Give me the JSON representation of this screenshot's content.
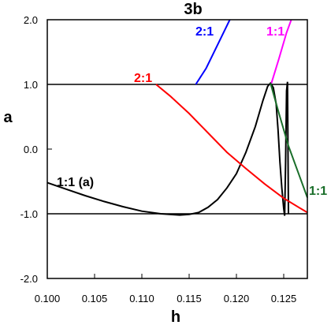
{
  "chart_data": {
    "type": "line",
    "title": "3b",
    "xlabel": "h",
    "ylabel": "a",
    "xlim": [
      0.1,
      0.1275
    ],
    "ylim": [
      -2.0,
      2.0
    ],
    "x_ticks": [
      "0.100",
      "0.105",
      "0.110",
      "0.115",
      "0.120",
      "0.125"
    ],
    "y_ticks": [
      "2.0",
      "1.0",
      "a",
      "0.0",
      "-1.0",
      "-2.0"
    ],
    "y_ticks_numeric": [
      "2.0",
      "1.0",
      "0.0",
      "-1.0",
      "-2.0"
    ],
    "grid": false,
    "reference_lines": [
      1.0,
      -1.0
    ],
    "series": [
      {
        "name": "1:1 (a)",
        "color": "#000000",
        "points": [
          [
            0.1,
            -0.52
          ],
          [
            0.102,
            -0.62
          ],
          [
            0.104,
            -0.72
          ],
          [
            0.106,
            -0.81
          ],
          [
            0.108,
            -0.89
          ],
          [
            0.11,
            -0.96
          ],
          [
            0.112,
            -1.0
          ],
          [
            0.114,
            -1.02
          ],
          [
            0.115,
            -1.01
          ],
          [
            0.116,
            -0.98
          ],
          [
            0.117,
            -0.9
          ],
          [
            0.118,
            -0.78
          ],
          [
            0.119,
            -0.6
          ],
          [
            0.12,
            -0.38
          ],
          [
            0.121,
            -0.05
          ],
          [
            0.122,
            0.35
          ],
          [
            0.1228,
            0.75
          ],
          [
            0.1233,
            0.97
          ],
          [
            0.1236,
            1.02
          ],
          [
            0.1239,
            0.95
          ],
          [
            0.1242,
            0.7
          ],
          [
            0.1244,
            0.3
          ],
          [
            0.1246,
            -0.2
          ],
          [
            0.1248,
            -0.6
          ],
          [
            0.125,
            -0.92
          ],
          [
            0.1251,
            -1.03
          ],
          [
            0.1252,
            -0.2
          ],
          [
            0.1253,
            0.9
          ],
          [
            0.1254,
            1.04
          ],
          [
            0.1255,
            -1.0
          ]
        ]
      },
      {
        "name": "2:1",
        "color": "#ff0000",
        "points": [
          [
            0.1115,
            1.0
          ],
          [
            0.113,
            0.82
          ],
          [
            0.115,
            0.55
          ],
          [
            0.117,
            0.25
          ],
          [
            0.119,
            -0.05
          ],
          [
            0.121,
            -0.3
          ],
          [
            0.123,
            -0.54
          ],
          [
            0.125,
            -0.76
          ],
          [
            0.1268,
            -0.92
          ],
          [
            0.1275,
            -0.98
          ]
        ]
      },
      {
        "name": "2:1",
        "color": "#0000ff",
        "points": [
          [
            0.1157,
            1.0
          ],
          [
            0.1168,
            1.25
          ],
          [
            0.1178,
            1.55
          ],
          [
            0.1188,
            1.85
          ],
          [
            0.1193,
            2.0
          ]
        ]
      },
      {
        "name": "1:1",
        "color": "#ff00ff",
        "points": [
          [
            0.1237,
            1.02
          ],
          [
            0.1245,
            1.4
          ],
          [
            0.1253,
            1.8
          ],
          [
            0.1258,
            2.0
          ]
        ]
      },
      {
        "name": "1:1",
        "color": "#1a6e2a",
        "points": [
          [
            0.1236,
            1.02
          ],
          [
            0.1245,
            0.55
          ],
          [
            0.1255,
            0.05
          ],
          [
            0.1265,
            -0.35
          ],
          [
            0.1275,
            -0.75
          ]
        ]
      }
    ],
    "annotations": [
      {
        "text": "1:1 (a)",
        "color": "#000000"
      },
      {
        "text": "2:1",
        "color": "#ff0000"
      },
      {
        "text": "2:1",
        "color": "#0000ff"
      },
      {
        "text": "1:1",
        "color": "#ff00ff"
      },
      {
        "text": "1:1",
        "color": "#1a6e2a"
      }
    ]
  }
}
